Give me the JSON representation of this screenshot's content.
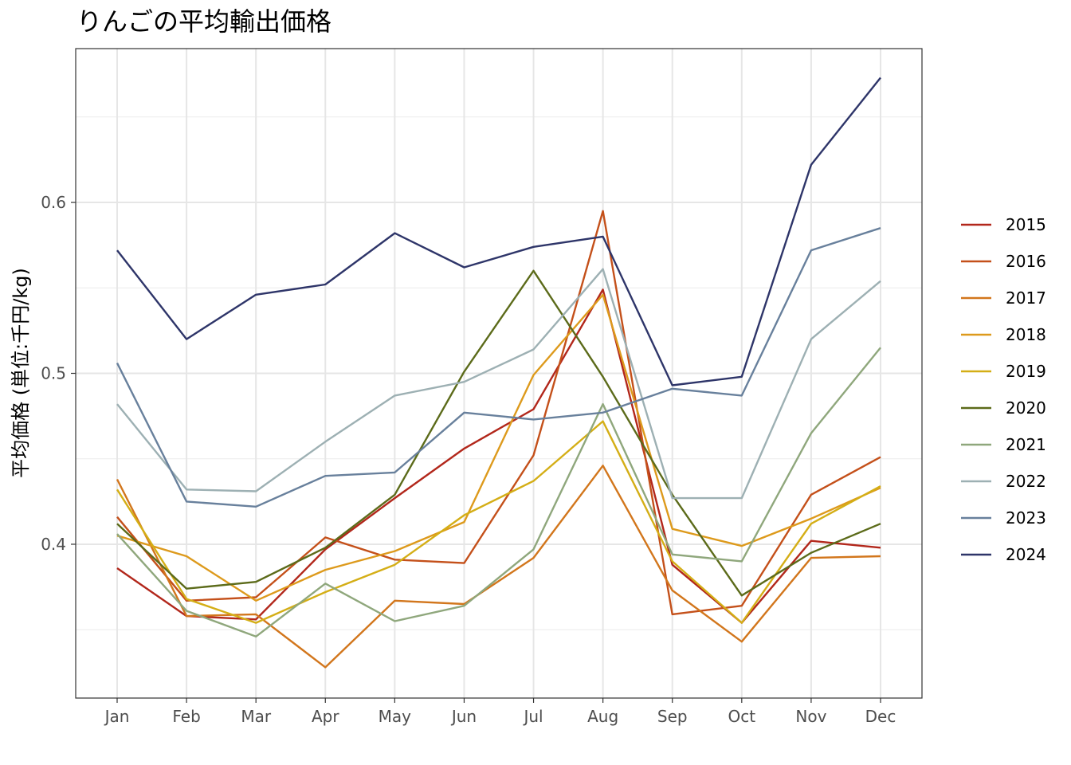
{
  "chart_data": {
    "type": "line",
    "title": "りんごの平均輸出価格",
    "xlabel": "",
    "ylabel": "平均価格 (単位:千円/kg)",
    "categories": [
      "Jan",
      "Feb",
      "Mar",
      "Apr",
      "May",
      "Jun",
      "Jul",
      "Aug",
      "Sep",
      "Oct",
      "Nov",
      "Dec"
    ],
    "ylim": [
      0.31,
      0.69
    ],
    "yticks": [
      0.4,
      0.5,
      0.6
    ],
    "ytick_labels": [
      "0.4",
      "0.5",
      "0.6"
    ],
    "grid": true,
    "legend_position": "right",
    "series": [
      {
        "name": "2015",
        "color": "#b2271b",
        "values": [
          0.386,
          0.358,
          0.356,
          0.397,
          0.427,
          0.456,
          0.479,
          0.549,
          0.388,
          0.354,
          0.402,
          0.398
        ]
      },
      {
        "name": "2016",
        "color": "#c4501a",
        "values": [
          0.416,
          0.367,
          0.369,
          0.404,
          0.391,
          0.389,
          0.452,
          0.595,
          0.359,
          0.364,
          0.429,
          0.451
        ]
      },
      {
        "name": "2017",
        "color": "#d2761c",
        "values": [
          0.438,
          0.358,
          0.359,
          0.328,
          0.367,
          0.365,
          0.392,
          0.446,
          0.373,
          0.343,
          0.392,
          0.393
        ]
      },
      {
        "name": "2018",
        "color": "#dd9a1c",
        "values": [
          0.405,
          0.393,
          0.367,
          0.385,
          0.396,
          0.413,
          0.499,
          0.546,
          0.409,
          0.399,
          0.415,
          0.433
        ]
      },
      {
        "name": "2019",
        "color": "#d4ae16",
        "values": [
          0.432,
          0.368,
          0.354,
          0.372,
          0.388,
          0.417,
          0.437,
          0.472,
          0.39,
          0.354,
          0.412,
          0.434
        ]
      },
      {
        "name": "2020",
        "color": "#5c6b1a",
        "values": [
          0.412,
          0.374,
          0.378,
          0.398,
          0.429,
          0.501,
          0.56,
          0.498,
          0.429,
          0.37,
          0.395,
          0.412
        ]
      },
      {
        "name": "2021",
        "color": "#8fa77c",
        "values": [
          0.406,
          0.361,
          0.346,
          0.377,
          0.355,
          0.364,
          0.397,
          0.482,
          0.394,
          0.39,
          0.465,
          0.515
        ]
      },
      {
        "name": "2022",
        "color": "#9db0b3",
        "values": [
          0.482,
          0.432,
          0.431,
          0.46,
          0.487,
          0.495,
          0.514,
          0.561,
          0.427,
          0.427,
          0.52,
          0.554
        ]
      },
      {
        "name": "2023",
        "color": "#68809c",
        "values": [
          0.506,
          0.425,
          0.422,
          0.44,
          0.442,
          0.477,
          0.473,
          0.477,
          0.491,
          0.487,
          0.572,
          0.585
        ]
      },
      {
        "name": "2024",
        "color": "#2e3569",
        "values": [
          0.572,
          0.52,
          0.546,
          0.552,
          0.582,
          0.562,
          0.574,
          0.58,
          0.493,
          0.498,
          0.622,
          0.673
        ]
      }
    ]
  }
}
